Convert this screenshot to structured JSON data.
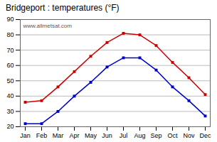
{
  "chart_data": {
    "type": "line",
    "title": "Bridgeport : temperatures (°F)",
    "categories": [
      "Jan",
      "Feb",
      "Mar",
      "Apr",
      "May",
      "Jun",
      "Jul",
      "Aug",
      "Sep",
      "Oct",
      "Nov",
      "Dec"
    ],
    "series": [
      {
        "color": "#cc0000",
        "marker": "square",
        "values": [
          36,
          37,
          46,
          56,
          66,
          75,
          81,
          80,
          73,
          62,
          52,
          41
        ]
      },
      {
        "color": "#0000cc",
        "marker": "square",
        "values": [
          22,
          22,
          30,
          40,
          49,
          59,
          65,
          65,
          57,
          46,
          37,
          27
        ]
      }
    ],
    "ylim": [
      20,
      90
    ],
    "yticks": [
      20,
      30,
      40,
      50,
      60,
      70,
      80,
      90
    ],
    "grid": true,
    "annotations": [
      "www.allmetsat.com"
    ]
  }
}
